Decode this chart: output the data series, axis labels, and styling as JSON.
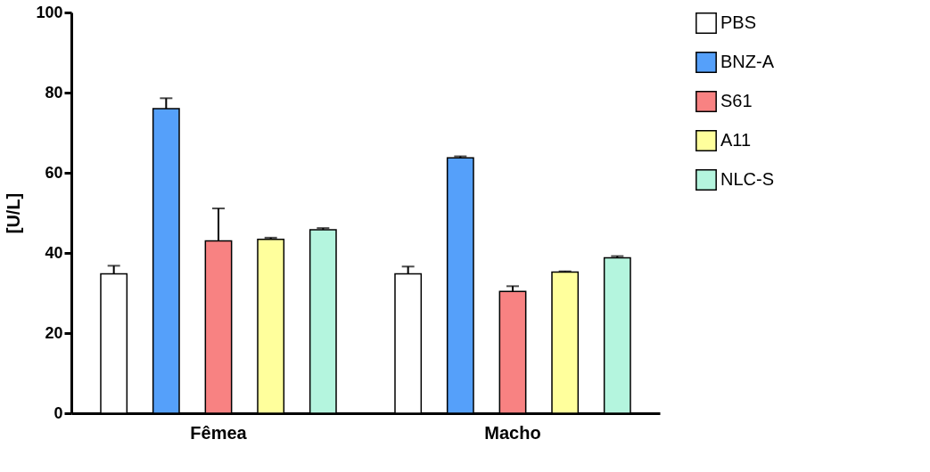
{
  "chart_data": {
    "type": "bar",
    "ylabel": "[U/L]",
    "categories": [
      "Fêmea",
      "Macho"
    ],
    "series": [
      {
        "name": "PBS",
        "color": "#ffffff",
        "values": [
          34.8,
          34.8
        ],
        "errors": [
          [
            34.8,
            36.8
          ],
          [
            34.8,
            36.6
          ]
        ]
      },
      {
        "name": "BNZ-A",
        "color": "#55a0fa",
        "values": [
          76.0,
          63.7
        ],
        "errors": [
          [
            76.0,
            78.6
          ],
          [
            63.7,
            64.1
          ]
        ]
      },
      {
        "name": "S61",
        "color": "#f88282",
        "values": [
          43.0,
          30.4
        ],
        "errors": [
          [
            43.0,
            51.1
          ],
          [
            30.4,
            31.7
          ]
        ]
      },
      {
        "name": "A11",
        "color": "#ffff9c",
        "values": [
          43.4,
          35.2
        ],
        "errors": [
          [
            43.4,
            43.8
          ],
          [
            35.2,
            35.4
          ]
        ]
      },
      {
        "name": "NLC-S",
        "color": "#b4f5de",
        "values": [
          45.8,
          38.8
        ],
        "errors": [
          [
            45.8,
            46.2
          ],
          [
            38.8,
            39.2
          ]
        ]
      }
    ],
    "ylim": [
      0,
      100
    ],
    "yticks": [
      0,
      20,
      40,
      60,
      80,
      100
    ],
    "grid": false,
    "legend": "right"
  }
}
